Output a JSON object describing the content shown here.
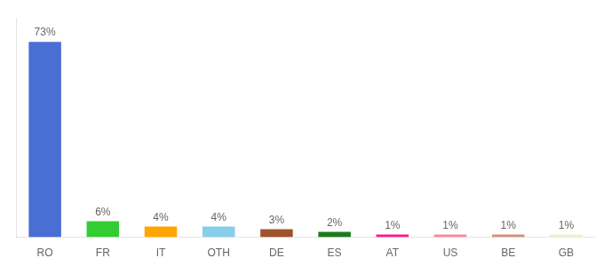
{
  "chart_data": {
    "type": "bar",
    "categories": [
      "RO",
      "FR",
      "IT",
      "OTH",
      "DE",
      "ES",
      "AT",
      "US",
      "BE",
      "GB"
    ],
    "values": [
      73,
      6,
      4,
      4,
      3,
      2,
      1,
      1,
      1,
      1
    ],
    "value_labels": [
      "73%",
      "6%",
      "4%",
      "4%",
      "3%",
      "2%",
      "1%",
      "1%",
      "1%",
      "1%"
    ],
    "colors": [
      "#4A6FD4",
      "#33CC33",
      "#FFA500",
      "#87CEEB",
      "#A0522D",
      "#1B7A1B",
      "#FF1493",
      "#FF85A2",
      "#D2907A",
      "#F0EDD0"
    ],
    "ylim": [
      0,
      82
    ],
    "data_labels": true,
    "tick_labels": "x",
    "grid": false
  }
}
